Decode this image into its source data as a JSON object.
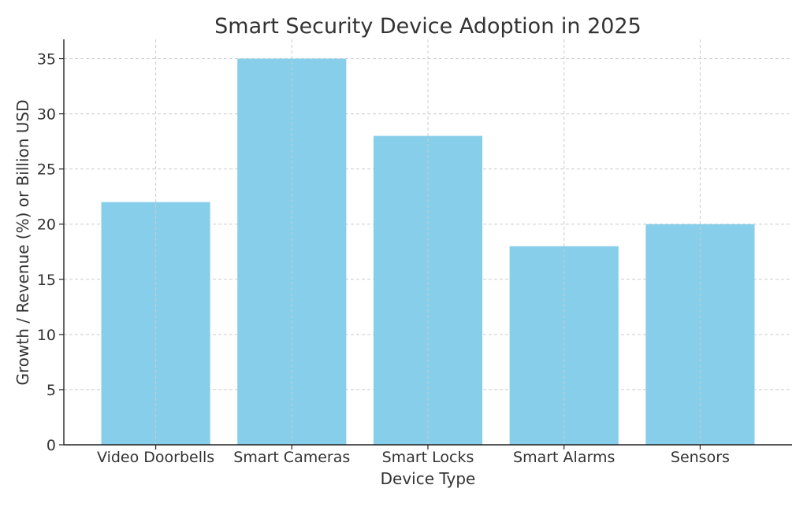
{
  "chart_data": {
    "type": "bar",
    "title": "Smart Security Device Adoption in 2025",
    "xlabel": "Device Type",
    "ylabel": "Growth / Revenue (%) or Billion USD",
    "categories": [
      "Video Doorbells",
      "Smart Cameras",
      "Smart Locks",
      "Smart Alarms",
      "Sensors"
    ],
    "values": [
      22,
      35,
      28,
      18,
      20
    ],
    "ylim": [
      0,
      36.75
    ],
    "yticks": [
      0,
      5,
      10,
      15,
      20,
      25,
      30,
      35
    ],
    "grid": true,
    "bar_color": "#87ceeb"
  }
}
